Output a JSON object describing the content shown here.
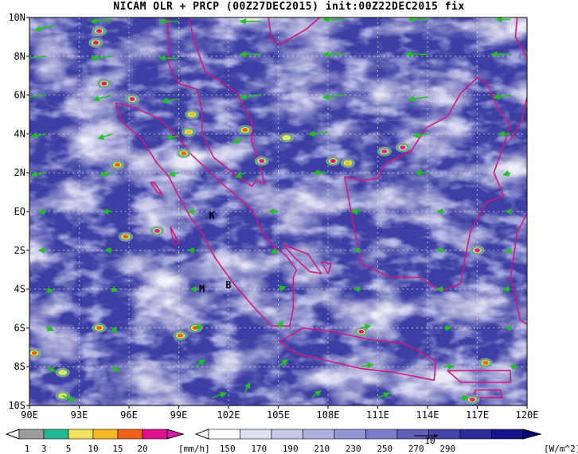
{
  "title": "NICAM OLR + PRCP (00Z27DEC2015) init:00Z22DEC2015 fix",
  "chart_data": {
    "type": "map",
    "lon_range": [
      90,
      120
    ],
    "lat_range": [
      -10,
      10
    ],
    "lon_ticks": [
      "90E",
      "93E",
      "96E",
      "99E",
      "102E",
      "105E",
      "108E",
      "111E",
      "114E",
      "117E",
      "120E"
    ],
    "lat_ticks": [
      "10N",
      "8N",
      "6N",
      "4N",
      "2N",
      "EQ",
      "2S",
      "4S",
      "6S",
      "8S",
      "10S"
    ],
    "site_labels": [
      {
        "text": "K",
        "lon": 101.0,
        "lat": -0.2
      },
      {
        "text": "M",
        "lon": 100.4,
        "lat": -4.0
      },
      {
        "text": "B",
        "lon": 102.0,
        "lat": -3.8
      }
    ],
    "precip_colorbar": {
      "levels": [
        "1",
        "3",
        "5",
        "10",
        "15",
        "20"
      ],
      "unit": "[mm/h]",
      "colors": [
        "#9c9c9c",
        "#20b890",
        "#f0e060",
        "#f7b820",
        "#f06018",
        "#e0108c",
        "#d81ab0"
      ]
    },
    "olr_colorbar": {
      "levels": [
        "150",
        "170",
        "190",
        "210",
        "230",
        "250",
        "270",
        "290"
      ],
      "unit": "[W/m^2]",
      "colors": [
        "#ffffff",
        "#e0e0f4",
        "#c8c8ea",
        "#aeb0e0",
        "#9496d4",
        "#7a7cc8",
        "#5e60b8",
        "#4244a8",
        "#2a2c98",
        "#12148a"
      ]
    },
    "vector_reference": "10",
    "precip_cells": [
      {
        "lon": 94.2,
        "lat": 9.3,
        "level": "15"
      },
      {
        "lon": 94.0,
        "lat": 8.7,
        "level": "15"
      },
      {
        "lon": 94.5,
        "lat": 6.6,
        "level": "15"
      },
      {
        "lon": 96.2,
        "lat": 5.8,
        "level": "20"
      },
      {
        "lon": 99.8,
        "lat": 5.0,
        "level": "5"
      },
      {
        "lon": 99.6,
        "lat": 4.1,
        "level": "5"
      },
      {
        "lon": 103.0,
        "lat": 4.2,
        "level": "10"
      },
      {
        "lon": 104.0,
        "lat": 2.6,
        "level": "20"
      },
      {
        "lon": 105.5,
        "lat": 3.8,
        "level": "3"
      },
      {
        "lon": 99.3,
        "lat": 3.0,
        "level": "10"
      },
      {
        "lon": 95.3,
        "lat": 2.4,
        "level": "10"
      },
      {
        "lon": 108.3,
        "lat": 2.6,
        "level": "15"
      },
      {
        "lon": 109.2,
        "lat": 2.5,
        "level": "5"
      },
      {
        "lon": 111.4,
        "lat": 3.1,
        "level": "20"
      },
      {
        "lon": 112.5,
        "lat": 3.3,
        "level": "20"
      },
      {
        "lon": 97.7,
        "lat": -1.0,
        "level": "20"
      },
      {
        "lon": 95.8,
        "lat": -1.3,
        "level": "10"
      },
      {
        "lon": 100.0,
        "lat": -6.0,
        "level": "10"
      },
      {
        "lon": 99.1,
        "lat": -6.4,
        "level": "10"
      },
      {
        "lon": 94.2,
        "lat": -6.0,
        "level": "10"
      },
      {
        "lon": 90.3,
        "lat": -7.3,
        "level": "10"
      },
      {
        "lon": 92.0,
        "lat": -8.3,
        "level": "3"
      },
      {
        "lon": 110.0,
        "lat": -6.2,
        "level": "20"
      },
      {
        "lon": 117.0,
        "lat": -2.0,
        "level": "20"
      },
      {
        "lon": 117.5,
        "lat": -7.8,
        "level": "10"
      },
      {
        "lon": 116.7,
        "lat": -9.7,
        "level": "20"
      },
      {
        "lon": 92.0,
        "lat": -9.5,
        "level": "3"
      }
    ],
    "wind_vectors": [
      {
        "lon": 91.5,
        "lat": 9.6,
        "u": -8,
        "v": -2
      },
      {
        "lon": 95,
        "lat": 9.9,
        "u": -9,
        "v": -1
      },
      {
        "lon": 99,
        "lat": 9.8,
        "u": -8,
        "v": 0
      },
      {
        "lon": 104,
        "lat": 9.8,
        "u": -9,
        "v": 0
      },
      {
        "lon": 109,
        "lat": 9.9,
        "u": -9,
        "v": 0
      },
      {
        "lon": 114,
        "lat": 9.9,
        "u": -8,
        "v": 0
      },
      {
        "lon": 119,
        "lat": 9.9,
        "u": -6,
        "v": 0
      },
      {
        "lon": 91,
        "lat": 8.0,
        "u": -9,
        "v": -1
      },
      {
        "lon": 95,
        "lat": 8.0,
        "u": -9,
        "v": -1
      },
      {
        "lon": 99,
        "lat": 7.9,
        "u": -8,
        "v": 0
      },
      {
        "lon": 104,
        "lat": 8.1,
        "u": -9,
        "v": 0
      },
      {
        "lon": 109,
        "lat": 8.1,
        "u": -9,
        "v": 0
      },
      {
        "lon": 114,
        "lat": 8.1,
        "u": -9,
        "v": 0
      },
      {
        "lon": 119,
        "lat": 8.1,
        "u": -8,
        "v": 0
      },
      {
        "lon": 91,
        "lat": 6.0,
        "u": -9,
        "v": -1
      },
      {
        "lon": 95,
        "lat": 6.0,
        "u": -8,
        "v": -2
      },
      {
        "lon": 99,
        "lat": 5.8,
        "u": -7,
        "v": -1
      },
      {
        "lon": 104,
        "lat": 6.0,
        "u": -9,
        "v": -1
      },
      {
        "lon": 109,
        "lat": 6.0,
        "u": -9,
        "v": -1
      },
      {
        "lon": 114,
        "lat": 5.9,
        "u": -8,
        "v": -1
      },
      {
        "lon": 119,
        "lat": 6.0,
        "u": -7,
        "v": -1
      },
      {
        "lon": 91,
        "lat": 4.0,
        "u": -6,
        "v": -1
      },
      {
        "lon": 95,
        "lat": 4.0,
        "u": -6,
        "v": -2
      },
      {
        "lon": 99,
        "lat": 3.9,
        "u": -5,
        "v": -1
      },
      {
        "lon": 103,
        "lat": 3.8,
        "u": -5,
        "v": -2
      },
      {
        "lon": 108,
        "lat": 4.1,
        "u": -8,
        "v": -1
      },
      {
        "lon": 114,
        "lat": 4.0,
        "u": -6,
        "v": -1
      },
      {
        "lon": 119,
        "lat": 4.0,
        "u": -5,
        "v": 0
      },
      {
        "lon": 91,
        "lat": 2.0,
        "u": -6,
        "v": -1
      },
      {
        "lon": 95,
        "lat": 2.0,
        "u": -5,
        "v": -1
      },
      {
        "lon": 99,
        "lat": 2.0,
        "u": -4,
        "v": -1
      },
      {
        "lon": 103,
        "lat": 2.0,
        "u": -4,
        "v": -2
      },
      {
        "lon": 108,
        "lat": 2.0,
        "u": -6,
        "v": 0
      },
      {
        "lon": 114,
        "lat": 2.0,
        "u": -5,
        "v": 0
      },
      {
        "lon": 119,
        "lat": 2.0,
        "u": -3,
        "v": -1
      },
      {
        "lon": 91,
        "lat": 0.0,
        "u": -3,
        "v": 0
      },
      {
        "lon": 95,
        "lat": 0.0,
        "u": -4,
        "v": 0
      },
      {
        "lon": 100,
        "lat": 0.0,
        "u": -3,
        "v": 0
      },
      {
        "lon": 105,
        "lat": 0.0,
        "u": -4,
        "v": 0
      },
      {
        "lon": 110,
        "lat": 0.0,
        "u": -4,
        "v": 0
      },
      {
        "lon": 115,
        "lat": 0.0,
        "u": -3,
        "v": 0
      },
      {
        "lon": 119,
        "lat": 0.0,
        "u": -2,
        "v": 0
      },
      {
        "lon": 91,
        "lat": -2.0,
        "u": -3,
        "v": 0
      },
      {
        "lon": 95,
        "lat": -2.0,
        "u": -3,
        "v": 0
      },
      {
        "lon": 100,
        "lat": -2.0,
        "u": -3,
        "v": 0
      },
      {
        "lon": 105,
        "lat": -2.0,
        "u": -3,
        "v": -1
      },
      {
        "lon": 110,
        "lat": -2.0,
        "u": -3,
        "v": 0
      },
      {
        "lon": 115,
        "lat": -2.0,
        "u": -3,
        "v": 0
      },
      {
        "lon": 119,
        "lat": -2.0,
        "u": -2,
        "v": -1
      },
      {
        "lon": 91,
        "lat": -4.0,
        "u": 3,
        "v": -1
      },
      {
        "lon": 95,
        "lat": -4.0,
        "u": 2,
        "v": -1
      },
      {
        "lon": 100,
        "lat": -4.0,
        "u": -2,
        "v": 0
      },
      {
        "lon": 105,
        "lat": -4.0,
        "u": 3,
        "v": 1
      },
      {
        "lon": 110,
        "lat": -4.0,
        "u": -3,
        "v": 0
      },
      {
        "lon": 115,
        "lat": -4.0,
        "u": -3,
        "v": 0
      },
      {
        "lon": 119,
        "lat": -4.0,
        "u": -3,
        "v": 0
      },
      {
        "lon": 91,
        "lat": -6.0,
        "u": 3,
        "v": -1
      },
      {
        "lon": 95,
        "lat": -6.0,
        "u": 2,
        "v": -2
      },
      {
        "lon": 100,
        "lat": -6.0,
        "u": 3,
        "v": 1
      },
      {
        "lon": 105,
        "lat": -6.0,
        "u": 2,
        "v": 3
      },
      {
        "lon": 110,
        "lat": -6.0,
        "u": 4,
        "v": 1
      },
      {
        "lon": 115,
        "lat": -6.0,
        "u": 3,
        "v": 0
      },
      {
        "lon": 119,
        "lat": -6.0,
        "u": -2,
        "v": 0
      },
      {
        "lon": 91,
        "lat": -8.0,
        "u": 4,
        "v": -2
      },
      {
        "lon": 95,
        "lat": -8.0,
        "u": 3,
        "v": -2
      },
      {
        "lon": 100,
        "lat": -8.0,
        "u": 4,
        "v": 3
      },
      {
        "lon": 105,
        "lat": -8.0,
        "u": 4,
        "v": 3
      },
      {
        "lon": 110,
        "lat": -8.0,
        "u": 5,
        "v": 1
      },
      {
        "lon": 115,
        "lat": -8.0,
        "u": 4,
        "v": 0
      },
      {
        "lon": 119,
        "lat": -8.0,
        "u": 3,
        "v": 0
      },
      {
        "lon": 92,
        "lat": -9.5,
        "u": 5,
        "v": -2
      },
      {
        "lon": 101,
        "lat": -9.6,
        "u": 6,
        "v": 2
      },
      {
        "lon": 103,
        "lat": -9.3,
        "u": 2,
        "v": 4
      },
      {
        "lon": 107,
        "lat": -9.6,
        "u": 4,
        "v": 3
      },
      {
        "lon": 111,
        "lat": -9.6,
        "u": 5,
        "v": 2
      },
      {
        "lon": 116,
        "lat": -9.6,
        "u": 3,
        "v": 0
      }
    ],
    "coastlines": [
      [
        [
          98.3,
          10
        ],
        [
          98.4,
          8.6
        ],
        [
          98.4,
          7.6
        ],
        [
          99.0,
          6.6
        ],
        [
          100.1,
          6.3
        ],
        [
          100.4,
          5.2
        ],
        [
          100.4,
          4.0
        ],
        [
          101.1,
          2.8
        ],
        [
          102.4,
          1.9
        ],
        [
          103.4,
          1.3
        ],
        [
          103.7,
          1.6
        ],
        [
          104.2,
          1.4
        ],
        [
          103.8,
          2.6
        ],
        [
          103.4,
          3.6
        ],
        [
          103.4,
          4.6
        ],
        [
          102.5,
          6.1
        ],
        [
          101.9,
          6.5
        ],
        [
          100.6,
          7.2
        ],
        [
          100.0,
          8.6
        ],
        [
          99.8,
          9.3
        ],
        [
          99.6,
          10
        ]
      ],
      [
        [
          95.2,
          5.6
        ],
        [
          95.6,
          4.6
        ],
        [
          96.7,
          3.8
        ],
        [
          97.6,
          2.6
        ],
        [
          98.4,
          1.8
        ],
        [
          99.0,
          0.8
        ],
        [
          99.7,
          -0.3
        ],
        [
          100.4,
          -1.1
        ],
        [
          101.2,
          -2.4
        ],
        [
          102.3,
          -3.7
        ],
        [
          103.6,
          -5.0
        ],
        [
          104.6,
          -5.9
        ],
        [
          105.7,
          -5.9
        ],
        [
          105.9,
          -5.0
        ],
        [
          105.9,
          -3.4
        ],
        [
          106.1,
          -3.0
        ],
        [
          105.5,
          -2.3
        ],
        [
          104.6,
          -1.7
        ],
        [
          104.0,
          -1.0
        ],
        [
          103.5,
          0.0
        ],
        [
          102.9,
          0.5
        ],
        [
          101.8,
          1.3
        ],
        [
          100.8,
          2.1
        ],
        [
          99.8,
          2.9
        ],
        [
          98.9,
          3.9
        ],
        [
          97.8,
          4.8
        ],
        [
          96.2,
          5.4
        ],
        [
          95.2,
          5.6
        ]
      ],
      [
        [
          105.1,
          -6.7
        ],
        [
          106.5,
          -6.0
        ],
        [
          108.3,
          -6.2
        ],
        [
          110.5,
          -6.6
        ],
        [
          112.6,
          -6.8
        ],
        [
          114.5,
          -7.7
        ],
        [
          114.4,
          -8.7
        ],
        [
          112.0,
          -8.3
        ],
        [
          110.0,
          -8.1
        ],
        [
          108.0,
          -7.7
        ],
        [
          106.0,
          -7.3
        ],
        [
          105.1,
          -6.7
        ]
      ],
      [
        [
          109.0,
          1.8
        ],
        [
          109.5,
          -0.5
        ],
        [
          110.0,
          -2.7
        ],
        [
          111.8,
          -3.4
        ],
        [
          113.5,
          -3.4
        ],
        [
          114.8,
          -4.1
        ],
        [
          116.0,
          -3.7
        ],
        [
          116.3,
          -2.2
        ],
        [
          116.6,
          -1.0
        ],
        [
          117.6,
          0.5
        ],
        [
          118.6,
          0.8
        ],
        [
          118.0,
          2.0
        ],
        [
          119.0,
          4.4
        ],
        [
          118.2,
          5.4
        ],
        [
          117.6,
          6.6
        ],
        [
          117.0,
          6.9
        ],
        [
          116.0,
          6.1
        ],
        [
          115.2,
          4.9
        ],
        [
          113.9,
          4.3
        ],
        [
          113.0,
          3.1
        ],
        [
          111.5,
          2.5
        ],
        [
          111.0,
          1.7
        ],
        [
          110.0,
          1.6
        ],
        [
          109.0,
          1.8
        ]
      ],
      [
        [
          105.3,
          -1.7
        ],
        [
          106.8,
          -2.2
        ],
        [
          107.6,
          -3.2
        ],
        [
          106.9,
          -3.1
        ],
        [
          105.9,
          -2.3
        ],
        [
          105.3,
          -1.7
        ]
      ],
      [
        [
          107.6,
          -2.6
        ],
        [
          108.2,
          -2.7
        ],
        [
          108.0,
          -3.2
        ],
        [
          107.6,
          -2.6
        ]
      ],
      [
        [
          97.3,
          1.5
        ],
        [
          97.7,
          1.0
        ],
        [
          98.0,
          0.9
        ],
        [
          97.5,
          1.5
        ],
        [
          97.3,
          1.5
        ]
      ],
      [
        [
          98.5,
          -0.8
        ],
        [
          99.0,
          -1.6
        ],
        [
          98.7,
          -1.7
        ],
        [
          98.5,
          -0.8
        ]
      ],
      [
        [
          115.2,
          -8.2
        ],
        [
          116.0,
          -8.8
        ],
        [
          117.5,
          -8.8
        ],
        [
          119.0,
          -8.8
        ],
        [
          119.0,
          -8.2
        ],
        [
          117.5,
          -8.2
        ],
        [
          115.2,
          -8.2
        ]
      ],
      [
        [
          116.7,
          -9.6
        ],
        [
          118.5,
          -9.6
        ],
        [
          118.4,
          -9.2
        ],
        [
          116.9,
          -9.2
        ],
        [
          116.7,
          -9.6
        ]
      ],
      [
        [
          119.4,
          10
        ],
        [
          119.3,
          9.0
        ],
        [
          119.9,
          8.1
        ],
        [
          120,
          7.9
        ]
      ],
      [
        [
          120,
          5.9
        ],
        [
          119.7,
          4.7
        ],
        [
          119.0,
          3.7
        ]
      ],
      [
        [
          120,
          -0.1
        ],
        [
          119.4,
          -1.1
        ],
        [
          119.0,
          -3.4
        ],
        [
          119.6,
          -5.6
        ],
        [
          120,
          -5.8
        ]
      ],
      [
        [
          104.4,
          10
        ],
        [
          104.6,
          8.9
        ],
        [
          105.1,
          8.6
        ],
        [
          106.7,
          9.4
        ],
        [
          107.5,
          10
        ]
      ]
    ]
  }
}
